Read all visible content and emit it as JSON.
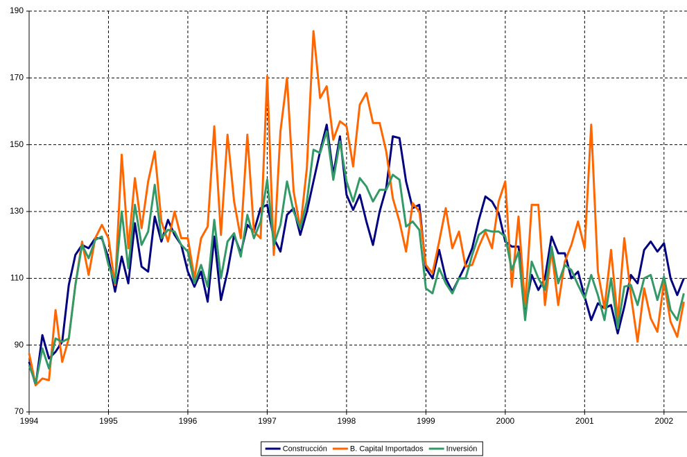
{
  "chart_data": {
    "type": "line",
    "x": [
      1994,
      1994.083,
      1994.167,
      1994.25,
      1994.333,
      1994.417,
      1994.5,
      1994.583,
      1994.667,
      1994.75,
      1994.833,
      1994.917,
      1995,
      1995.083,
      1995.167,
      1995.25,
      1995.333,
      1995.417,
      1995.5,
      1995.583,
      1995.667,
      1995.75,
      1995.833,
      1995.917,
      1996,
      1996.083,
      1996.167,
      1996.25,
      1996.333,
      1996.417,
      1996.5,
      1996.583,
      1996.667,
      1996.75,
      1996.833,
      1996.917,
      1997,
      1997.083,
      1997.167,
      1997.25,
      1997.333,
      1997.417,
      1997.5,
      1997.583,
      1997.667,
      1997.75,
      1997.833,
      1997.917,
      1998,
      1998.083,
      1998.167,
      1998.25,
      1998.333,
      1998.417,
      1998.5,
      1998.583,
      1998.667,
      1998.75,
      1998.833,
      1998.917,
      1999,
      1999.083,
      1999.167,
      1999.25,
      1999.333,
      1999.417,
      1999.5,
      1999.583,
      1999.667,
      1999.75,
      1999.833,
      1999.917,
      2000,
      2000.083,
      2000.167,
      2000.25,
      2000.333,
      2000.417,
      2000.5,
      2000.583,
      2000.667,
      2000.75,
      2000.833,
      2000.917,
      2001,
      2001.083,
      2001.167,
      2001.25,
      2001.333,
      2001.417,
      2001.5,
      2001.583,
      2001.667,
      2001.75,
      2001.833,
      2001.917,
      2002,
      2002.083,
      2002.167,
      2002.25
    ],
    "series": [
      {
        "name": "Construcción",
        "color": "#000080",
        "values": [
          85,
          78,
          93,
          86,
          88,
          91,
          108,
          117,
          120,
          119,
          122,
          122,
          116,
          106,
          116.5,
          108.5,
          126.5,
          113.5,
          112,
          128.5,
          121,
          127.5,
          123,
          120,
          112,
          107.5,
          112,
          103,
          122.5,
          103.5,
          112,
          123,
          117.5,
          126,
          124,
          131,
          132,
          122,
          118,
          129,
          131,
          123,
          130,
          139,
          148,
          156,
          141,
          152.5,
          135,
          130.5,
          135,
          127,
          120,
          130,
          137,
          152.5,
          152,
          139,
          131,
          132,
          113,
          110,
          118.5,
          110,
          106,
          110,
          114,
          119,
          127.5,
          134.5,
          133,
          129.5,
          121,
          119.5,
          119.5,
          100.5,
          111,
          106.5,
          110,
          122.5,
          117.5,
          117.5,
          110,
          112,
          104.5,
          97.5,
          102.5,
          101,
          102,
          93.5,
          101.5,
          111,
          108.5,
          118.5,
          121,
          118,
          120.5,
          110,
          105,
          110
        ]
      },
      {
        "name": "B. Capital Importados",
        "color": "#ff6600",
        "values": [
          87.5,
          78,
          80,
          79.5,
          100.5,
          85,
          92,
          108,
          121,
          111,
          122,
          126,
          122,
          108,
          147,
          119,
          140,
          125,
          139,
          148,
          127,
          121,
          130,
          122,
          122,
          110,
          122,
          125.5,
          155.5,
          123,
          153,
          133,
          122,
          153,
          124,
          122,
          170.5,
          117,
          154,
          170,
          136,
          125,
          143,
          184,
          164,
          167.5,
          151.5,
          157,
          155.5,
          143.5,
          162,
          165.5,
          156.5,
          156.5,
          148,
          134,
          127,
          118,
          132.5,
          130,
          114,
          111.5,
          121,
          131,
          119,
          124,
          113.5,
          114,
          119.5,
          124,
          119,
          133,
          139,
          107.5,
          128.5,
          101.5,
          132,
          132,
          102,
          118.5,
          102,
          115,
          120,
          127,
          119,
          156,
          112,
          101,
          118.5,
          97.5,
          122,
          105,
          91,
          107,
          98,
          94,
          109,
          97,
          92.5,
          103
        ]
      },
      {
        "name": "Inversión",
        "color": "#339966",
        "values": [
          84,
          78.5,
          89,
          83,
          92,
          91,
          92,
          108,
          120,
          116,
          121.5,
          122.5,
          114,
          108.5,
          130,
          113,
          132,
          120,
          124,
          138,
          122,
          124.5,
          124,
          120,
          118,
          108.5,
          114,
          107.5,
          127.5,
          110,
          121,
          123.5,
          116.5,
          129,
          122,
          127,
          139.5,
          120,
          126,
          139,
          130,
          125,
          133,
          148.5,
          147.5,
          154,
          139.5,
          151,
          139,
          133,
          140,
          137.5,
          133,
          136.5,
          136.5,
          141,
          139.5,
          125.5,
          127,
          124.5,
          107,
          105.5,
          113,
          108.5,
          105.5,
          110,
          110,
          117,
          123,
          124.5,
          124,
          124,
          122.5,
          112.5,
          118,
          97.5,
          115,
          110,
          106.5,
          119.5,
          108.5,
          114,
          112.5,
          108,
          104,
          111,
          105,
          97.5,
          110,
          95,
          107.5,
          108,
          102,
          110,
          111,
          103.5,
          110.5,
          100.5,
          97.5,
          105.5
        ]
      }
    ],
    "xlim": [
      1994,
      2002.29
    ],
    "xticks": [
      1994,
      1995,
      1996,
      1997,
      1998,
      1999,
      2000,
      2001,
      2002
    ],
    "ylim": [
      70,
      190
    ],
    "yticks": [
      70,
      90,
      110,
      130,
      150,
      170,
      190
    ],
    "grid": true,
    "legend": "bottom"
  }
}
